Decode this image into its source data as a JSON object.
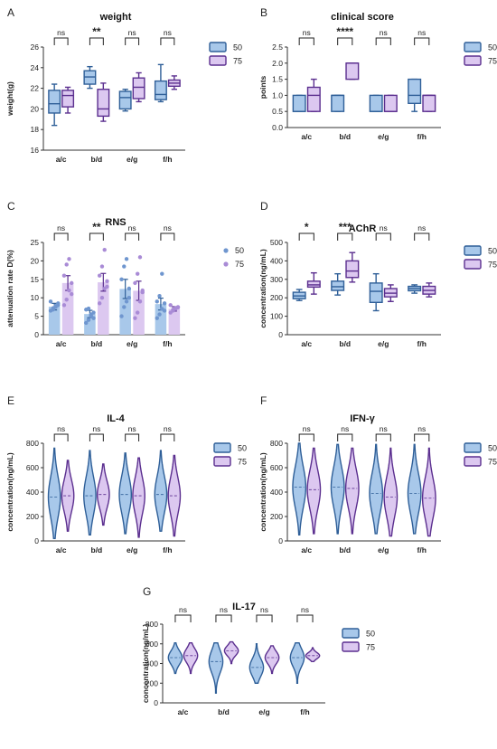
{
  "colors": {
    "s50_fill": "#a8c8ea",
    "s50_stroke": "#2f5f98",
    "s75_fill": "#dcc8f0",
    "s75_stroke": "#5b2f8f",
    "dots50": "#6f96cf",
    "dots75": "#a98bd6"
  },
  "chart_data": [
    {
      "panel": "A",
      "title": "weight",
      "type": "box",
      "ylabel": "weight(g)",
      "ylim": [
        16,
        26
      ],
      "yticks": [
        "16",
        "18",
        "20",
        "22",
        "24",
        "26"
      ],
      "categories": [
        "a/c",
        "b/d",
        "e/g",
        "f/h"
      ],
      "sig": [
        "ns",
        "**",
        "ns",
        "ns"
      ],
      "legend": [
        "50",
        "75"
      ],
      "series": [
        {
          "name": "50",
          "boxes": [
            {
              "min": 18.4,
              "q1": 19.6,
              "med": 20.5,
              "q3": 21.8,
              "max": 22.4
            },
            {
              "min": 22.0,
              "q1": 22.4,
              "med": 23.1,
              "q3": 23.7,
              "max": 24.1
            },
            {
              "min": 19.8,
              "q1": 20.0,
              "med": 21.1,
              "q3": 21.7,
              "max": 21.9
            },
            {
              "min": 20.7,
              "q1": 20.9,
              "med": 21.4,
              "q3": 22.7,
              "max": 24.3
            }
          ]
        },
        {
          "name": "75",
          "boxes": [
            {
              "min": 19.6,
              "q1": 20.2,
              "med": 21.3,
              "q3": 21.8,
              "max": 22.1
            },
            {
              "min": 18.8,
              "q1": 19.3,
              "med": 20.0,
              "q3": 21.9,
              "max": 22.5
            },
            {
              "min": 20.7,
              "q1": 21.0,
              "med": 22.1,
              "q3": 23.0,
              "max": 23.5
            },
            {
              "min": 21.9,
              "q1": 22.2,
              "med": 22.5,
              "q3": 22.8,
              "max": 23.2
            }
          ]
        }
      ]
    },
    {
      "panel": "B",
      "title": "clinical score",
      "type": "box",
      "ylabel": "points",
      "ylim": [
        0,
        2.5
      ],
      "yticks": [
        "0.0",
        "0.5",
        "1.0",
        "1.5",
        "2.0",
        "2.5"
      ],
      "categories": [
        "a/c",
        "b/d",
        "e/g",
        "f/h"
      ],
      "sig": [
        "ns",
        "****",
        "ns",
        "ns"
      ],
      "legend": [
        "50",
        "75"
      ],
      "series": [
        {
          "name": "50",
          "boxes": [
            {
              "min": 0.5,
              "q1": 0.5,
              "med": 0.5,
              "q3": 1.0,
              "max": 1.0
            },
            {
              "min": 0.5,
              "q1": 0.5,
              "med": 1.0,
              "q3": 1.0,
              "max": 1.0
            },
            {
              "min": 0.5,
              "q1": 0.5,
              "med": 0.5,
              "q3": 1.0,
              "max": 1.0
            },
            {
              "min": 0.5,
              "q1": 0.75,
              "med": 1.0,
              "q3": 1.5,
              "max": 1.5
            }
          ]
        },
        {
          "name": "75",
          "boxes": [
            {
              "min": 0.5,
              "q1": 0.5,
              "med": 1.0,
              "q3": 1.25,
              "max": 1.5
            },
            {
              "min": 1.5,
              "q1": 1.5,
              "med": 2.0,
              "q3": 2.0,
              "max": 2.0
            },
            {
              "min": 0.5,
              "q1": 0.5,
              "med": 0.5,
              "q3": 1.0,
              "max": 1.0
            },
            {
              "min": 0.5,
              "q1": 0.5,
              "med": 1.0,
              "q3": 1.0,
              "max": 1.0
            }
          ]
        }
      ]
    },
    {
      "panel": "C",
      "title": "RNS",
      "type": "bar",
      "ylabel": "attenuation rate D(%)",
      "ylim": [
        0,
        25
      ],
      "yticks": [
        "0",
        "5",
        "10",
        "15",
        "20",
        "25"
      ],
      "categories": [
        "a/c",
        "b/d",
        "e/g",
        "f/h"
      ],
      "sig": [
        "ns",
        "**",
        "ns",
        "ns"
      ],
      "legend": [
        "50",
        "75"
      ],
      "series": [
        {
          "name": "50",
          "values": [
            7.6,
            5.6,
            12.4,
            8.3
          ],
          "err": [
            0.9,
            1.0,
            2.6,
            1.6
          ],
          "points": [
            [
              6.5,
              7.2,
              7.8,
              8.5,
              9.0,
              6.8,
              7.5,
              8.0
            ],
            [
              3.2,
              4.0,
              5.5,
              6.0,
              6.8,
              7.1,
              5.0,
              4.5
            ],
            [
              5.0,
              7.5,
              9.0,
              12.5,
              15.0,
              18.5,
              20.5,
              10.0
            ],
            [
              4.5,
              5.5,
              7.0,
              8.5,
              9.0,
              10.5,
              16.5,
              6.5
            ]
          ]
        },
        {
          "name": "75",
          "values": [
            14.0,
            14.2,
            11.9,
            7.0
          ],
          "err": [
            2.0,
            2.4,
            2.6,
            0.6
          ],
          "points": [
            [
              8.0,
              9.5,
              12.0,
              14.0,
              16.0,
              19.0,
              20.5,
              11.0
            ],
            [
              8.5,
              10.0,
              12.5,
              14.5,
              16.0,
              18.5,
              23.0,
              13.0
            ],
            [
              4.5,
              6.0,
              9.0,
              11.5,
              14.0,
              16.5,
              21.0,
              12.0
            ],
            [
              6.0,
              6.5,
              7.0,
              7.5,
              8.0,
              6.8,
              7.2,
              7.4
            ]
          ]
        }
      ]
    },
    {
      "panel": "D",
      "title": "AChR",
      "type": "box",
      "ylabel": "concentration(ng/mL)",
      "ylim": [
        0,
        500
      ],
      "yticks": [
        "0",
        "100",
        "200",
        "300",
        "400",
        "500"
      ],
      "categories": [
        "a/c",
        "b/d",
        "e/g",
        "f/h"
      ],
      "sig": [
        "*",
        "***",
        "ns",
        "ns"
      ],
      "legend": [
        "50",
        "75"
      ],
      "series": [
        {
          "name": "50",
          "boxes": [
            {
              "min": 185,
              "q1": 195,
              "med": 210,
              "q3": 230,
              "max": 245
            },
            {
              "min": 215,
              "q1": 240,
              "med": 260,
              "q3": 290,
              "max": 330
            },
            {
              "min": 130,
              "q1": 175,
              "med": 235,
              "q3": 280,
              "max": 330
            },
            {
              "min": 225,
              "q1": 238,
              "med": 250,
              "q3": 262,
              "max": 270
            }
          ]
        },
        {
          "name": "75",
          "boxes": [
            {
              "min": 220,
              "q1": 258,
              "med": 270,
              "q3": 290,
              "max": 335
            },
            {
              "min": 285,
              "q1": 310,
              "med": 345,
              "q3": 400,
              "max": 445
            },
            {
              "min": 180,
              "q1": 205,
              "med": 225,
              "q3": 250,
              "max": 270
            },
            {
              "min": 205,
              "q1": 220,
              "med": 240,
              "q3": 262,
              "max": 280
            }
          ]
        }
      ]
    },
    {
      "panel": "E",
      "title": "IL-4",
      "type": "violin",
      "ylabel": "concentration(ng/mL)",
      "ylim": [
        0,
        800
      ],
      "yticks": [
        "0",
        "200",
        "400",
        "600",
        "800"
      ],
      "categories": [
        "a/c",
        "b/d",
        "e/g",
        "f/h"
      ],
      "sig": [
        "ns",
        "ns",
        "ns",
        "ns"
      ],
      "legend": [
        "50",
        "75"
      ],
      "series": [
        {
          "name": "50",
          "violins": [
            {
              "min": 20,
              "max": 760,
              "med": 360,
              "q1": 240,
              "q3": 490
            },
            {
              "min": 50,
              "max": 740,
              "med": 370,
              "q1": 250,
              "q3": 500
            },
            {
              "min": 60,
              "max": 720,
              "med": 380,
              "q1": 260,
              "q3": 500
            },
            {
              "min": 80,
              "max": 740,
              "med": 380,
              "q1": 260,
              "q3": 510
            }
          ]
        },
        {
          "name": "75",
          "violins": [
            {
              "min": 80,
              "max": 660,
              "med": 370,
              "q1": 260,
              "q3": 480
            },
            {
              "min": 130,
              "max": 630,
              "med": 380,
              "q1": 280,
              "q3": 470
            },
            {
              "min": 30,
              "max": 680,
              "med": 370,
              "q1": 230,
              "q3": 480
            },
            {
              "min": 40,
              "max": 700,
              "med": 370,
              "q1": 240,
              "q3": 490
            }
          ]
        }
      ]
    },
    {
      "panel": "F",
      "title": "IFN-γ",
      "type": "violin",
      "ylabel": "concentration(ng/mL)",
      "ylim": [
        0,
        800
      ],
      "yticks": [
        "0",
        "200",
        "400",
        "600",
        "800"
      ],
      "categories": [
        "a/c",
        "b/d",
        "e/g",
        "f/h"
      ],
      "sig": [
        "ns",
        "ns",
        "ns",
        "ns"
      ],
      "legend": [
        "50",
        "75"
      ],
      "series": [
        {
          "name": "50",
          "violins": [
            {
              "min": 50,
              "max": 800,
              "med": 440,
              "q1": 300,
              "q3": 580
            },
            {
              "min": 60,
              "max": 790,
              "med": 440,
              "q1": 300,
              "q3": 590
            },
            {
              "min": 60,
              "max": 790,
              "med": 390,
              "q1": 260,
              "q3": 560
            },
            {
              "min": 60,
              "max": 790,
              "med": 390,
              "q1": 250,
              "q3": 560
            }
          ]
        },
        {
          "name": "75",
          "violins": [
            {
              "min": 60,
              "max": 760,
              "med": 420,
              "q1": 290,
              "q3": 560
            },
            {
              "min": 60,
              "max": 760,
              "med": 430,
              "q1": 300,
              "q3": 570
            },
            {
              "min": 40,
              "max": 760,
              "med": 360,
              "q1": 240,
              "q3": 520
            },
            {
              "min": 40,
              "max": 760,
              "med": 350,
              "q1": 240,
              "q3": 520
            }
          ]
        }
      ]
    },
    {
      "panel": "G",
      "title": "IL-17",
      "type": "violin",
      "ylabel": "concentration(ng/mL)",
      "ylim": [
        0,
        800
      ],
      "yticks": [
        "0",
        "200",
        "400",
        "600",
        "800"
      ],
      "categories": [
        "a/c",
        "b/d",
        "e/g",
        "f/h"
      ],
      "sig": [
        "ns",
        "ns",
        "ns",
        "ns"
      ],
      "legend": [
        "50",
        "75"
      ],
      "series": [
        {
          "name": "50",
          "violins": [
            {
              "min": 300,
              "max": 610,
              "med": 460,
              "q1": 400,
              "q3": 520
            },
            {
              "min": 100,
              "max": 610,
              "med": 420,
              "q1": 280,
              "q3": 520
            },
            {
              "min": 200,
              "max": 600,
              "med": 360,
              "q1": 300,
              "q3": 480
            },
            {
              "min": 200,
              "max": 610,
              "med": 460,
              "q1": 380,
              "q3": 540
            }
          ]
        },
        {
          "name": "75",
          "violins": [
            {
              "min": 300,
              "max": 610,
              "med": 480,
              "q1": 420,
              "q3": 540
            },
            {
              "min": 400,
              "max": 620,
              "med": 530,
              "q1": 480,
              "q3": 570
            },
            {
              "min": 300,
              "max": 580,
              "med": 460,
              "q1": 400,
              "q3": 520
            },
            {
              "min": 420,
              "max": 560,
              "med": 480,
              "q1": 450,
              "q3": 510
            }
          ]
        }
      ]
    }
  ]
}
